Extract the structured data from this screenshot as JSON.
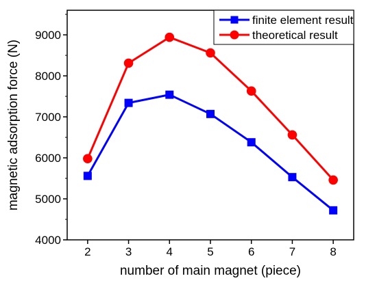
{
  "chart_data": {
    "type": "line",
    "xlabel": "number of main magnet (piece)",
    "ylabel": "magnetic adsorption force (N)",
    "x": [
      2,
      3,
      4,
      5,
      6,
      7,
      8
    ],
    "xlim": [
      1.5,
      8.5
    ],
    "ylim": [
      4000,
      9600
    ],
    "xticks": [
      "2",
      "3",
      "4",
      "5",
      "6",
      "7",
      "8"
    ],
    "xtick_values": [
      2,
      3,
      4,
      5,
      6,
      7,
      8
    ],
    "yticks": [
      "4000",
      "5000",
      "6000",
      "7000",
      "8000",
      "9000"
    ],
    "ytick_values": [
      4000,
      5000,
      6000,
      7000,
      8000,
      9000
    ],
    "grid": false,
    "legend_position": "top-right",
    "series": [
      {
        "name": "finite element result",
        "values": [
          5560,
          7340,
          7540,
          7070,
          6380,
          5530,
          4720
        ],
        "color": "#0000ff",
        "marker": "square"
      },
      {
        "name": "theoretical result",
        "values": [
          5980,
          8310,
          8940,
          8560,
          7630,
          6560,
          5460
        ],
        "color": "#ff0000",
        "marker": "circle"
      }
    ]
  }
}
